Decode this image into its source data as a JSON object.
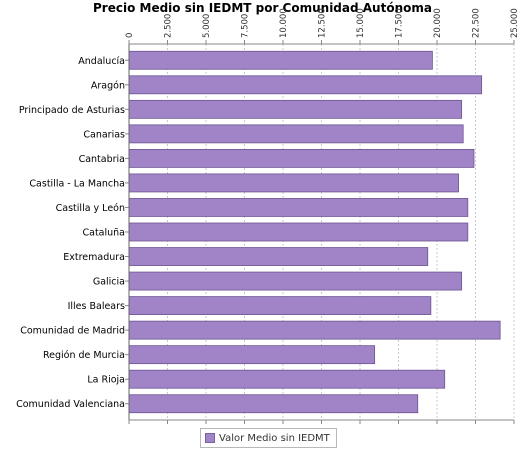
{
  "chart_data": {
    "type": "bar",
    "orientation": "horizontal",
    "title": "Precio Medio sin IEDMT por Comunidad Autónoma",
    "xlabel": "",
    "ylabel": "",
    "xlim": [
      0,
      25000
    ],
    "x_ticks": [
      0,
      2500,
      5000,
      7500,
      10000,
      12500,
      15000,
      17500,
      20000,
      22500,
      25000
    ],
    "x_tick_labels": [
      "0",
      "2.500",
      "5.000",
      "7.500",
      "10.000",
      "12.500",
      "15.000",
      "17.500",
      "20.000",
      "22.500",
      "25.000"
    ],
    "grid": "vertical dashed",
    "legend_position": "bottom",
    "categories": [
      "Andalucía",
      "Aragón",
      "Principado de Asturias",
      "Canarias",
      "Cantabria",
      "Castilla - La Mancha",
      "Castilla y León",
      "Cataluña",
      "Extremadura",
      "Galicia",
      "Illes Balears",
      "Comunidad de Madrid",
      "Región de Murcia",
      "La Rioja",
      "Comunidad Valenciana"
    ],
    "series": [
      {
        "name": "Valor Medio sin IEDMT",
        "color": "#a184c8",
        "values": [
          19700,
          22900,
          21600,
          21700,
          22400,
          21400,
          22000,
          22000,
          19400,
          21600,
          19600,
          24100,
          15950,
          20500,
          18750
        ]
      }
    ]
  }
}
